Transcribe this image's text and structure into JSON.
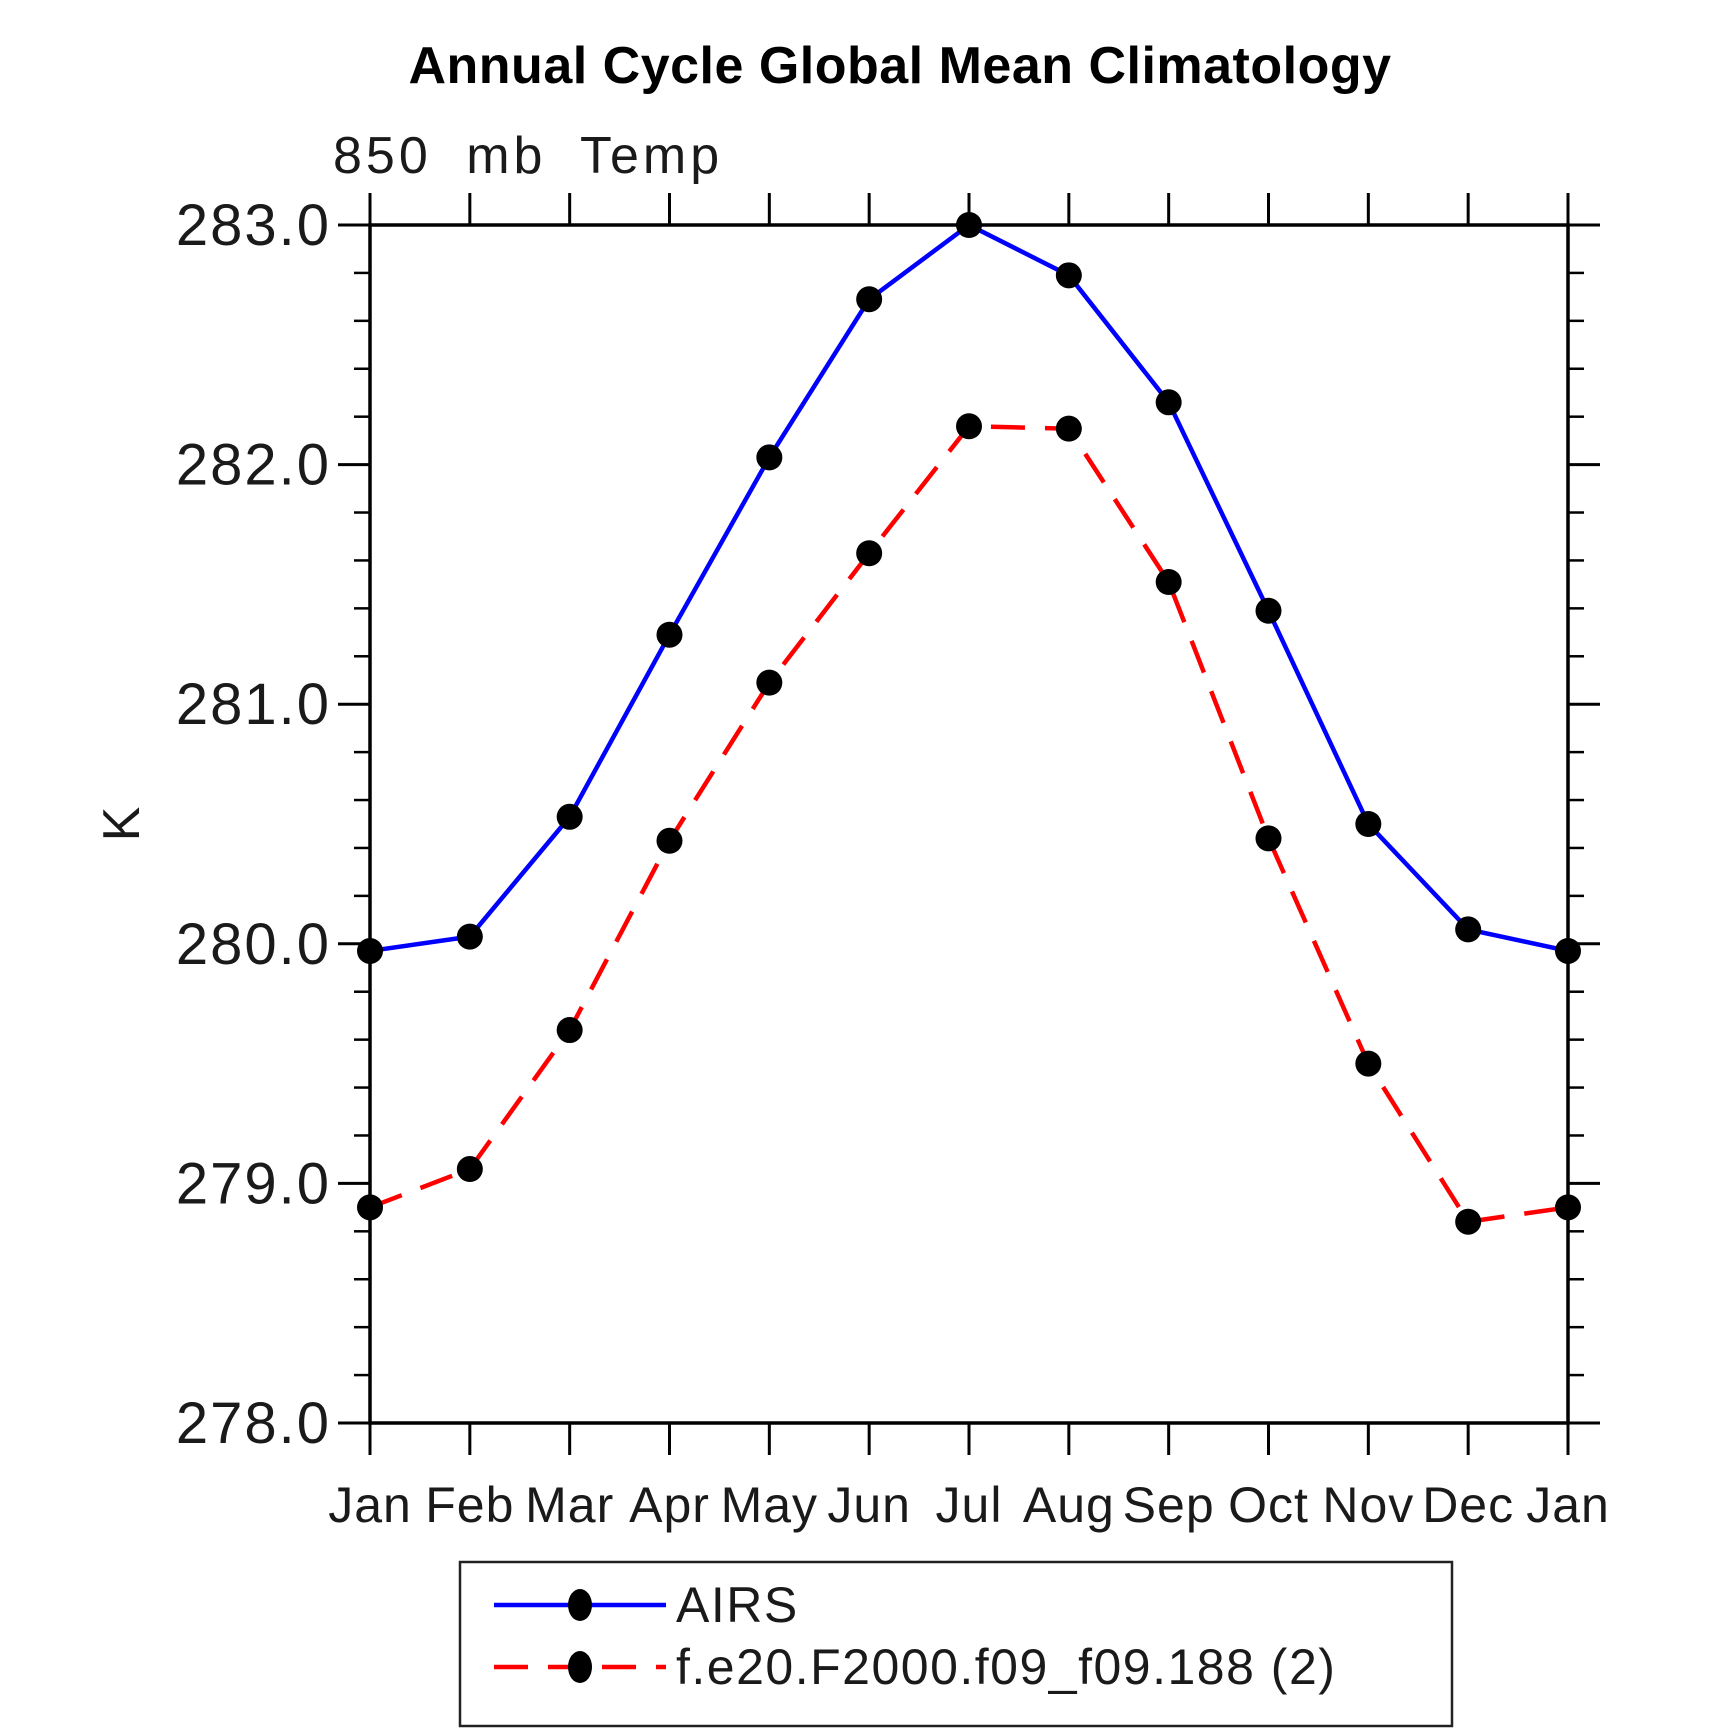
{
  "page": {
    "background": "#ffffff",
    "text_color": "#1a1a1a",
    "axis_color": "#000000"
  },
  "chart_data": {
    "type": "line",
    "title": "Annual Cycle Global Mean Climatology",
    "subtitle": "850 mb Temp",
    "ylabel": "K",
    "xlabel": "",
    "ylim": [
      278.0,
      283.0
    ],
    "ytick_major_step": 1.0,
    "ytick_minor_step": 0.2,
    "ytick_labels": [
      "278.0",
      "279.0",
      "280.0",
      "281.0",
      "282.0",
      "283.0"
    ],
    "categories": [
      "Jan",
      "Feb",
      "Mar",
      "Apr",
      "May",
      "Jun",
      "Jul",
      "Aug",
      "Sep",
      "Oct",
      "Nov",
      "Dec",
      "Jan"
    ],
    "grid": "off",
    "legend_position": "bottom",
    "series": [
      {
        "name": "AIRS",
        "color": "#0000ff",
        "line_style": "solid",
        "marker": "filled-circle",
        "marker_color": "#000000",
        "values": [
          279.97,
          280.03,
          280.53,
          281.29,
          282.03,
          282.69,
          283.0,
          282.79,
          282.26,
          281.39,
          280.5,
          280.06,
          279.97
        ]
      },
      {
        "name": "f.e20.F2000.f09_f09.188 (2)",
        "color": "#ff0000",
        "line_style": "dashed",
        "marker": "filled-circle",
        "marker_color": "#000000",
        "values": [
          278.9,
          279.06,
          279.64,
          280.43,
          281.09,
          281.63,
          282.16,
          282.15,
          281.51,
          280.44,
          279.5,
          278.84,
          278.9
        ]
      }
    ]
  }
}
